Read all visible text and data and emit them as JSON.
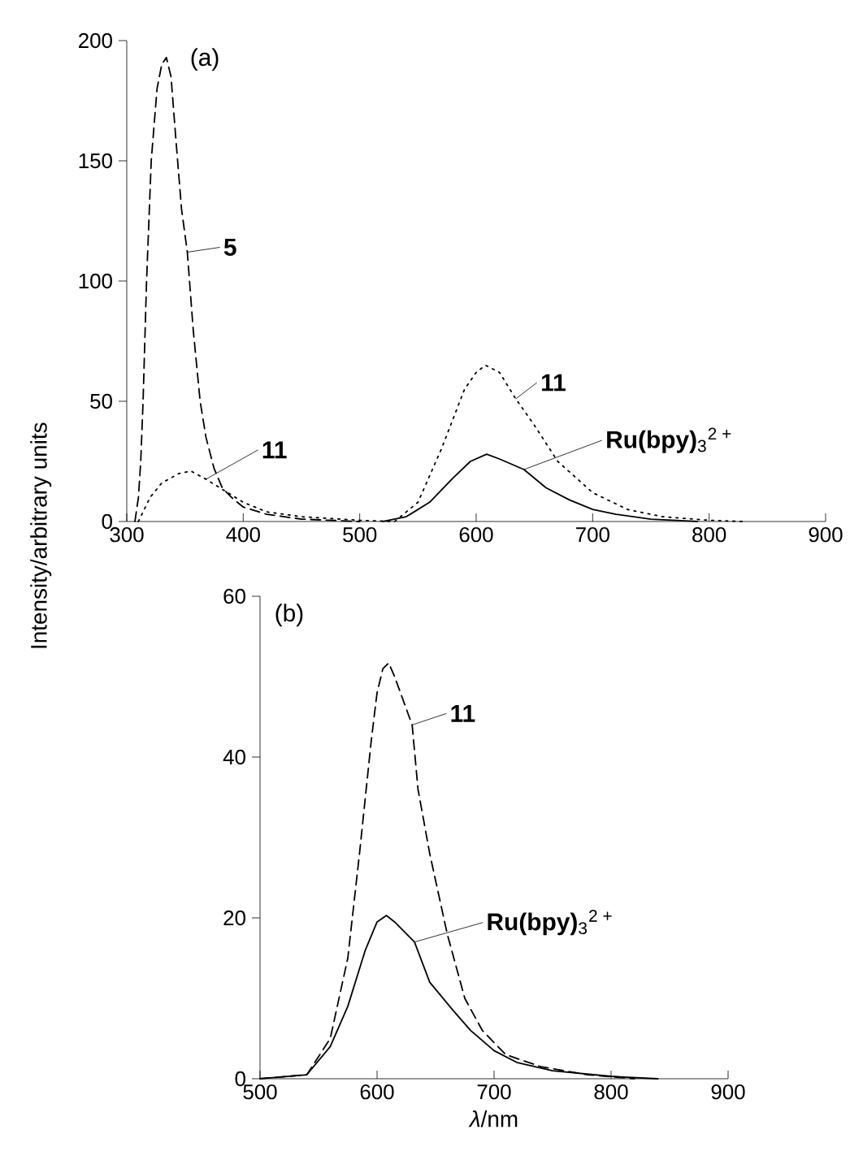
{
  "chart_data": [
    {
      "type": "line",
      "ylabel": "Intensity/arbitrary units",
      "xlim": [
        300,
        900
      ],
      "ylim": [
        0,
        200
      ],
      "xticks": [
        300,
        400,
        500,
        600,
        700,
        800,
        900
      ],
      "yticks": [
        0,
        50,
        100,
        150,
        200
      ],
      "series": [
        {
          "color": "#000000",
          "line_style": "dashed",
          "x": [
            307,
            310,
            312,
            314,
            317,
            321,
            326,
            330,
            334,
            338,
            342,
            347,
            352,
            357,
            363,
            368,
            375,
            382,
            390,
            400,
            420,
            450,
            500
          ],
          "values": [
            0,
            10,
            25,
            50,
            100,
            150,
            180,
            190,
            193,
            185,
            160,
            130,
            112,
            80,
            50,
            35,
            22,
            14,
            10,
            6,
            3,
            1,
            0
          ]
        },
        {
          "color": "#000000",
          "line_style": "dotted",
          "x": [
            310,
            320,
            330,
            345,
            355,
            368,
            380,
            400,
            420,
            450,
            500,
            530,
            550,
            570,
            590,
            600,
            608,
            620,
            634,
            650,
            670,
            700,
            730,
            760,
            800,
            830
          ],
          "values": [
            0,
            10,
            16,
            20,
            21,
            17.6,
            14,
            8,
            4,
            2,
            0.5,
            0,
            8,
            30,
            55,
            62,
            65,
            62,
            51,
            40,
            25,
            12,
            5,
            2,
            0.5,
            0
          ]
        },
        {
          "color": "#000000",
          "line_style": "solid",
          "x": [
            520,
            540,
            560,
            580,
            595,
            609,
            620,
            641,
            660,
            680,
            700,
            720,
            750,
            790
          ],
          "values": [
            0,
            2,
            8,
            18,
            25,
            28,
            26,
            21.6,
            14,
            9,
            5,
            3,
            1,
            0
          ]
        }
      ],
      "annotations": [
        "(a)",
        {
          "text": "**5**",
          "x": 352,
          "y": 112
        },
        {
          "text": "**11**",
          "x": 368,
          "y": 17.6
        },
        {
          "text": "**11**",
          "x": 634,
          "y": 51
        },
        {
          "text": "**Ru(bpy)**$_{3}$$^{2 +}$",
          "x": 641,
          "y": 21.6
        }
      ]
    },
    {
      "type": "line",
      "xlabel": "*λ*/nm",
      "xlim": [
        500,
        900
      ],
      "ylim": [
        0,
        60
      ],
      "xticks": [
        500,
        600,
        700,
        800,
        900
      ],
      "yticks": [
        0,
        20,
        40,
        60
      ],
      "series": [
        {
          "color": "#000000",
          "line_style": "dashed",
          "x": [
            500,
            540,
            560,
            575,
            585,
            595,
            600,
            605,
            610,
            615,
            630,
            635,
            645,
            660,
            675,
            690,
            710,
            740,
            780,
            820
          ],
          "values": [
            0,
            0.5,
            5,
            15,
            28,
            42,
            48,
            51,
            51.7,
            50,
            44,
            36,
            28,
            18,
            10,
            6,
            3,
            1.5,
            0.5,
            0
          ]
        },
        {
          "color": "#000000",
          "line_style": "solid",
          "x": [
            500,
            540,
            560,
            575,
            590,
            600,
            608,
            615,
            632,
            645,
            665,
            680,
            700,
            720,
            750,
            800,
            840
          ],
          "values": [
            0,
            0.5,
            4,
            9,
            16,
            19.5,
            20.3,
            19.5,
            17,
            12,
            8.5,
            6,
            3.5,
            2,
            1,
            0.3,
            0
          ]
        }
      ],
      "annotations": [
        "(b)",
        {
          "text": "**11**",
          "x": 630,
          "y": 44
        },
        {
          "text": "**Ru(bpy)**$_{3}$$^{2 +}$",
          "x": 632,
          "y": 17
        }
      ]
    }
  ]
}
